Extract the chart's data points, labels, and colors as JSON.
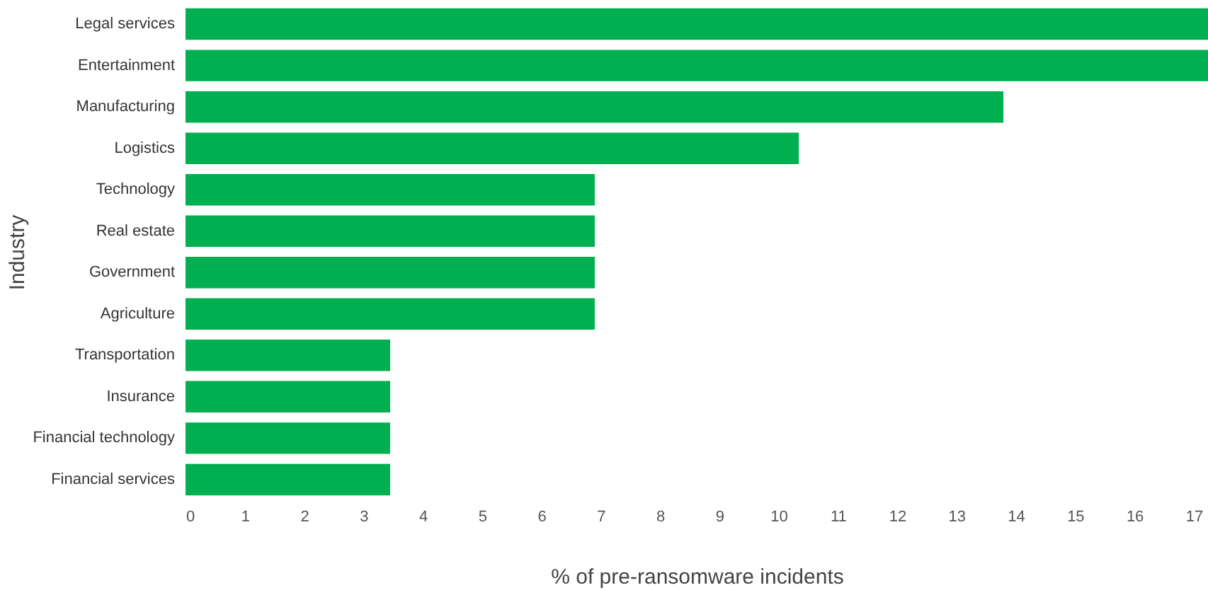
{
  "chart_data": {
    "type": "bar",
    "orientation": "horizontal",
    "xlabel": "% of pre-ransomware incidents",
    "ylabel": "Industry",
    "categories": [
      "Legal services",
      "Entertainment",
      "Manufacturing",
      "Logistics",
      "Technology",
      "Real estate",
      "Government",
      "Agriculture",
      "Transportation",
      "Insurance",
      "Financial technology",
      "Financial services"
    ],
    "values": [
      17.24,
      17.24,
      13.79,
      10.34,
      6.9,
      6.9,
      6.9,
      6.9,
      3.45,
      3.45,
      3.45,
      3.45
    ],
    "color": "#00b050",
    "xlim": [
      0,
      17.24
    ],
    "xticks": [
      0,
      1,
      2,
      3,
      4,
      5,
      6,
      7,
      8,
      9,
      10,
      11,
      12,
      13,
      14,
      15,
      16,
      17
    ],
    "grid": false
  }
}
